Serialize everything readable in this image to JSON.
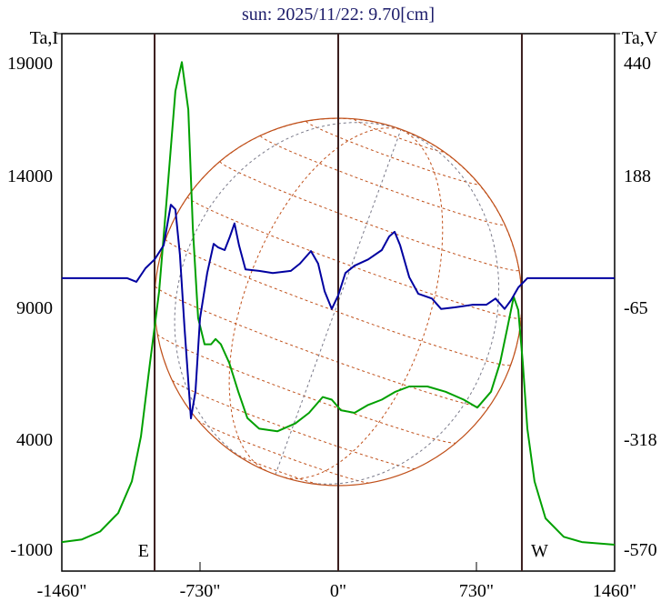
{
  "chart_data": {
    "type": "line",
    "title": "sun: 2025/11/22: 9.70[cm]",
    "ylabel_left": "Ta,I",
    "ylabel_right": "Ta,V",
    "xlim": [
      -1460,
      1460
    ],
    "ylim_left": [
      -1000,
      19000
    ],
    "ylim_right": [
      -570,
      440
    ],
    "x_ticks": [
      "-1460\"",
      "-730\"",
      "0\"",
      "730\"",
      "1460\""
    ],
    "x_tick_values": [
      -1460,
      -730,
      0,
      730,
      1460
    ],
    "y_left_ticks": [
      "19000",
      "14000",
      "9000",
      "4000",
      "-1000"
    ],
    "y_right_ticks": [
      "440",
      "188",
      "-65",
      "-318",
      "-570"
    ],
    "markers": [
      {
        "label": "E",
        "x": -970
      },
      {
        "label": "",
        "x": 0
      },
      {
        "label": "W",
        "x": 970
      }
    ],
    "colors": {
      "I": "#00a000",
      "V": "#0000a0",
      "disk": "#c0501a",
      "marker": "#3a1e1e",
      "grid_gray": "#7a7a8a"
    },
    "series": [
      {
        "name": "I",
        "axis": "left",
        "x": [
          -1460,
          -1354,
          -1258,
          -1162,
          -1090,
          -1042,
          -994,
          -946,
          -898,
          -860,
          -826,
          -792,
          -768,
          -740,
          -706,
          -672,
          -648,
          -620,
          -576,
          -528,
          -480,
          -418,
          -322,
          -226,
          -154,
          -82,
          -34,
          14,
          86,
          158,
          230,
          302,
          375,
          471,
          567,
          663,
          735,
          807,
          855,
          893,
          927,
          951,
          975,
          999,
          1037,
          1095,
          1191,
          1287,
          1460
        ],
        "y": [
          100,
          200,
          500,
          1200,
          2400,
          4100,
          6900,
          9600,
          13800,
          17200,
          18300,
          16500,
          12000,
          8600,
          7600,
          7600,
          7800,
          7600,
          6900,
          5800,
          4800,
          4400,
          4300,
          4600,
          5000,
          5600,
          5500,
          5100,
          5000,
          5300,
          5500,
          5800,
          6000,
          6000,
          5800,
          5500,
          5200,
          5800,
          6900,
          8200,
          9400,
          8900,
          6900,
          4400,
          2400,
          1000,
          300,
          100,
          0
        ]
      },
      {
        "name": "V",
        "axis": "right",
        "x": [
          -1460,
          -1114,
          -1066,
          -1018,
          -970,
          -922,
          -884,
          -860,
          -836,
          -812,
          -778,
          -754,
          -730,
          -692,
          -658,
          -634,
          -600,
          -572,
          -548,
          -524,
          -490,
          -418,
          -346,
          -250,
          -202,
          -144,
          -106,
          -72,
          -34,
          0,
          38,
          86,
          158,
          230,
          269,
          298,
          327,
          375,
          423,
          495,
          543,
          615,
          711,
          783,
          831,
          879,
          913,
          951,
          999,
          1460
        ],
        "y": [
          -9,
          -9,
          -16,
          10,
          27,
          54,
          132,
          123,
          36,
          -103,
          -278,
          -226,
          -86,
          1,
          57,
          50,
          45,
          71,
          96,
          54,
          8,
          5,
          1,
          5,
          19,
          43,
          19,
          -34,
          -68,
          -42,
          1,
          15,
          27,
          45,
          71,
          80,
          54,
          -7,
          -39,
          -48,
          -68,
          -65,
          -60,
          -60,
          -48,
          -68,
          -51,
          -27,
          -9,
          -9
        ]
      }
    ]
  }
}
